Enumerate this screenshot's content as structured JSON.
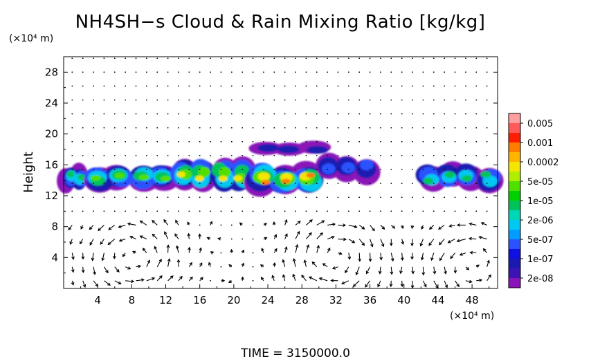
{
  "chart_data": {
    "type": "heatmap",
    "title": "NH4SH−s Cloud & Rain Mixing Ratio [kg/kg]",
    "y_unit": "(×10⁴ m)",
    "x_unit": "(×10⁴ m)",
    "ylabel": "Height",
    "xlabel": "",
    "footer": "TIME = 3150000.0",
    "xlim": [
      0,
      51
    ],
    "ylim": [
      0,
      30
    ],
    "x_ticks": [
      4,
      8,
      12,
      16,
      20,
      24,
      28,
      32,
      36,
      40,
      44,
      48
    ],
    "y_ticks": [
      4,
      8,
      12,
      16,
      20,
      24,
      28
    ],
    "colorbar": {
      "scale": "log",
      "labels": [
        "0.005",
        "0.001",
        "0.0002",
        "5e-05",
        "1e-05",
        "2e-06",
        "5e-07",
        "1e-07",
        "2e-08"
      ],
      "colors": [
        "#ff9f9f",
        "#ff5a5a",
        "#ff1e00",
        "#ff7e00",
        "#ffb400",
        "#f3e600",
        "#b0ee00",
        "#4fe000",
        "#00d000",
        "#00c45a",
        "#00d6b8",
        "#00c8f0",
        "#009cff",
        "#2a52ff",
        "#1010e0",
        "#1a1ab0",
        "#3c14b4",
        "#8a14b8"
      ]
    },
    "cloud_regions": [
      {
        "x": [
          0.0,
          2.6
        ],
        "y": [
          12.7,
          16.0
        ],
        "peak": "1e-05"
      },
      {
        "x": [
          2.6,
          13.0
        ],
        "y": [
          12.7,
          16.0
        ],
        "peak": "5e-05"
      },
      {
        "x": [
          13.0,
          22.0
        ],
        "y": [
          12.7,
          16.8
        ],
        "peak": "0.0002"
      },
      {
        "x": [
          22.0,
          30.0
        ],
        "y": [
          12.4,
          16.2
        ],
        "peak": "0.001"
      },
      {
        "x": [
          30.0,
          36.5
        ],
        "y": [
          13.8,
          17.2
        ],
        "peak": "1e-06"
      },
      {
        "x": [
          22.5,
          31.0
        ],
        "y": [
          17.3,
          19.0
        ],
        "peak": "1e-07"
      },
      {
        "x": [
          42.0,
          51.0
        ],
        "y": [
          12.7,
          16.0
        ],
        "peak": "1e-05"
      }
    ],
    "wind_vectors": "velocity field drawn as small arrows; strong circulation cells near x = 4–12, 28–36 and 44–51 below height 8"
  }
}
